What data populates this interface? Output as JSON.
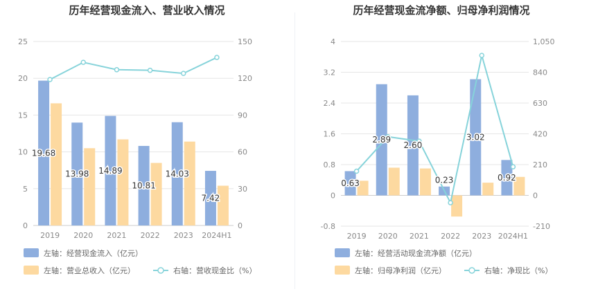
{
  "colors": {
    "bar1": "#8eaede",
    "bar2": "#fdd9a0",
    "line": "#86d3da",
    "grid": "#e6e6e6",
    "axis_text": "#888888",
    "title": "#333333",
    "legend_text": "#666666",
    "label_text": "#333333"
  },
  "chart_data": [
    {
      "type": "bar+line",
      "title": "历年经营现金流入、营业收入情况",
      "categories": [
        "2019",
        "2020",
        "2021",
        "2022",
        "2023",
        "2024H1"
      ],
      "left_axis": {
        "min": 0,
        "max": 25,
        "ticks": [
          "0",
          "5",
          "10",
          "15",
          "20",
          "25"
        ]
      },
      "right_axis": {
        "min": 0,
        "max": 150,
        "ticks": [
          "0",
          "30",
          "60",
          "90",
          "120",
          "150"
        ]
      },
      "series": [
        {
          "name": "左轴：经营现金流入（亿元）",
          "axis": "left",
          "kind": "bar",
          "values": [
            19.68,
            13.98,
            14.89,
            10.81,
            14.03,
            7.42
          ],
          "labels": [
            "19.68",
            "13.98",
            "14.89",
            "10.81",
            "14.03",
            "7.42"
          ]
        },
        {
          "name": "左轴：营业总收入（亿元）",
          "axis": "left",
          "kind": "bar",
          "values": [
            16.6,
            10.5,
            11.7,
            8.5,
            11.4,
            5.4
          ]
        },
        {
          "name": "右轴：营收现金比（%）",
          "axis": "right",
          "kind": "line",
          "values": [
            119,
            133,
            127,
            126.5,
            124,
            137
          ]
        }
      ]
    },
    {
      "type": "bar+line",
      "title": "历年经营现金流净额、归母净利润情况",
      "categories": [
        "2019",
        "2020",
        "2021",
        "2022",
        "2023",
        "2024H1"
      ],
      "left_axis": {
        "min": -0.8,
        "max": 4,
        "ticks": [
          "-0.8",
          "0",
          "0.8",
          "1.6",
          "2.4",
          "3.2",
          "4"
        ]
      },
      "right_axis": {
        "min": -210,
        "max": 1050,
        "ticks": [
          "-210",
          "0",
          "210",
          "420",
          "630",
          "840",
          "1,050"
        ]
      },
      "series": [
        {
          "name": "左轴：经营活动现金流净额（亿元）",
          "axis": "left",
          "kind": "bar",
          "values": [
            0.63,
            2.89,
            2.6,
            0.23,
            3.02,
            0.92
          ],
          "labels": [
            "0.63",
            "2.89",
            "2.60",
            "0.23",
            "3.02",
            "0.92"
          ]
        },
        {
          "name": "左轴：归母净利润（亿元）",
          "axis": "left",
          "kind": "bar",
          "values": [
            0.38,
            0.72,
            0.7,
            -0.55,
            0.33,
            0.48
          ]
        },
        {
          "name": "右轴：净现比（%）",
          "axis": "right",
          "kind": "line",
          "values": [
            165,
            400,
            370,
            -50,
            955,
            195
          ]
        }
      ]
    }
  ]
}
